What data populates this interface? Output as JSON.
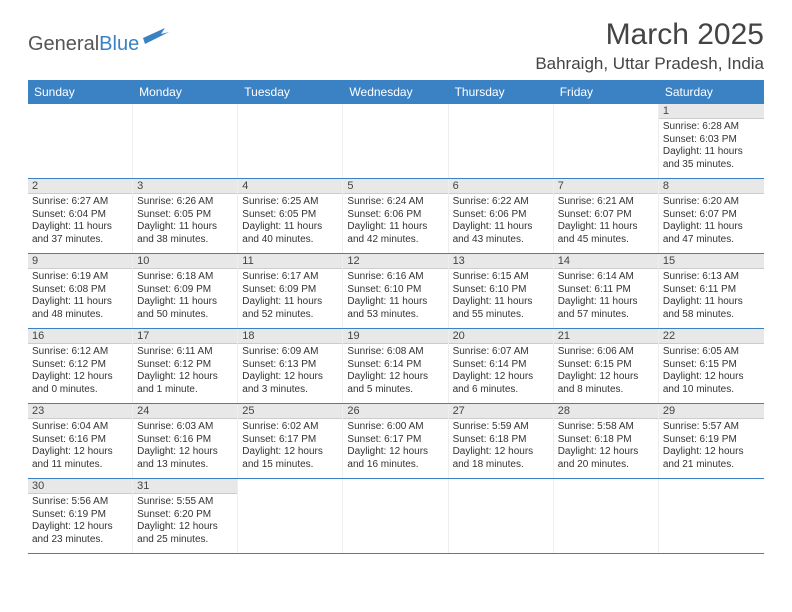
{
  "logo": {
    "text1": "General",
    "text2": "Blue"
  },
  "title": "March 2025",
  "location": "Bahraigh, Uttar Pradesh, India",
  "colors": {
    "header_bg": "#3b82c4",
    "daynum_bg": "#e8e8e8",
    "border": "#3b82c4"
  },
  "day_names": [
    "Sunday",
    "Monday",
    "Tuesday",
    "Wednesday",
    "Thursday",
    "Friday",
    "Saturday"
  ],
  "weeks": [
    [
      null,
      null,
      null,
      null,
      null,
      null,
      {
        "d": "1",
        "sr": "6:28 AM",
        "ss": "6:03 PM",
        "dl": "11 hours and 35 minutes."
      }
    ],
    [
      {
        "d": "2",
        "sr": "6:27 AM",
        "ss": "6:04 PM",
        "dl": "11 hours and 37 minutes."
      },
      {
        "d": "3",
        "sr": "6:26 AM",
        "ss": "6:05 PM",
        "dl": "11 hours and 38 minutes."
      },
      {
        "d": "4",
        "sr": "6:25 AM",
        "ss": "6:05 PM",
        "dl": "11 hours and 40 minutes."
      },
      {
        "d": "5",
        "sr": "6:24 AM",
        "ss": "6:06 PM",
        "dl": "11 hours and 42 minutes."
      },
      {
        "d": "6",
        "sr": "6:22 AM",
        "ss": "6:06 PM",
        "dl": "11 hours and 43 minutes."
      },
      {
        "d": "7",
        "sr": "6:21 AM",
        "ss": "6:07 PM",
        "dl": "11 hours and 45 minutes."
      },
      {
        "d": "8",
        "sr": "6:20 AM",
        "ss": "6:07 PM",
        "dl": "11 hours and 47 minutes."
      }
    ],
    [
      {
        "d": "9",
        "sr": "6:19 AM",
        "ss": "6:08 PM",
        "dl": "11 hours and 48 minutes."
      },
      {
        "d": "10",
        "sr": "6:18 AM",
        "ss": "6:09 PM",
        "dl": "11 hours and 50 minutes."
      },
      {
        "d": "11",
        "sr": "6:17 AM",
        "ss": "6:09 PM",
        "dl": "11 hours and 52 minutes."
      },
      {
        "d": "12",
        "sr": "6:16 AM",
        "ss": "6:10 PM",
        "dl": "11 hours and 53 minutes."
      },
      {
        "d": "13",
        "sr": "6:15 AM",
        "ss": "6:10 PM",
        "dl": "11 hours and 55 minutes."
      },
      {
        "d": "14",
        "sr": "6:14 AM",
        "ss": "6:11 PM",
        "dl": "11 hours and 57 minutes."
      },
      {
        "d": "15",
        "sr": "6:13 AM",
        "ss": "6:11 PM",
        "dl": "11 hours and 58 minutes."
      }
    ],
    [
      {
        "d": "16",
        "sr": "6:12 AM",
        "ss": "6:12 PM",
        "dl": "12 hours and 0 minutes."
      },
      {
        "d": "17",
        "sr": "6:11 AM",
        "ss": "6:12 PM",
        "dl": "12 hours and 1 minute."
      },
      {
        "d": "18",
        "sr": "6:09 AM",
        "ss": "6:13 PM",
        "dl": "12 hours and 3 minutes."
      },
      {
        "d": "19",
        "sr": "6:08 AM",
        "ss": "6:14 PM",
        "dl": "12 hours and 5 minutes."
      },
      {
        "d": "20",
        "sr": "6:07 AM",
        "ss": "6:14 PM",
        "dl": "12 hours and 6 minutes."
      },
      {
        "d": "21",
        "sr": "6:06 AM",
        "ss": "6:15 PM",
        "dl": "12 hours and 8 minutes."
      },
      {
        "d": "22",
        "sr": "6:05 AM",
        "ss": "6:15 PM",
        "dl": "12 hours and 10 minutes."
      }
    ],
    [
      {
        "d": "23",
        "sr": "6:04 AM",
        "ss": "6:16 PM",
        "dl": "12 hours and 11 minutes."
      },
      {
        "d": "24",
        "sr": "6:03 AM",
        "ss": "6:16 PM",
        "dl": "12 hours and 13 minutes."
      },
      {
        "d": "25",
        "sr": "6:02 AM",
        "ss": "6:17 PM",
        "dl": "12 hours and 15 minutes."
      },
      {
        "d": "26",
        "sr": "6:00 AM",
        "ss": "6:17 PM",
        "dl": "12 hours and 16 minutes."
      },
      {
        "d": "27",
        "sr": "5:59 AM",
        "ss": "6:18 PM",
        "dl": "12 hours and 18 minutes."
      },
      {
        "d": "28",
        "sr": "5:58 AM",
        "ss": "6:18 PM",
        "dl": "12 hours and 20 minutes."
      },
      {
        "d": "29",
        "sr": "5:57 AM",
        "ss": "6:19 PM",
        "dl": "12 hours and 21 minutes."
      }
    ],
    [
      {
        "d": "30",
        "sr": "5:56 AM",
        "ss": "6:19 PM",
        "dl": "12 hours and 23 minutes."
      },
      {
        "d": "31",
        "sr": "5:55 AM",
        "ss": "6:20 PM",
        "dl": "12 hours and 25 minutes."
      },
      null,
      null,
      null,
      null,
      null
    ]
  ],
  "labels": {
    "sunrise": "Sunrise:",
    "sunset": "Sunset:",
    "daylight": "Daylight:"
  }
}
